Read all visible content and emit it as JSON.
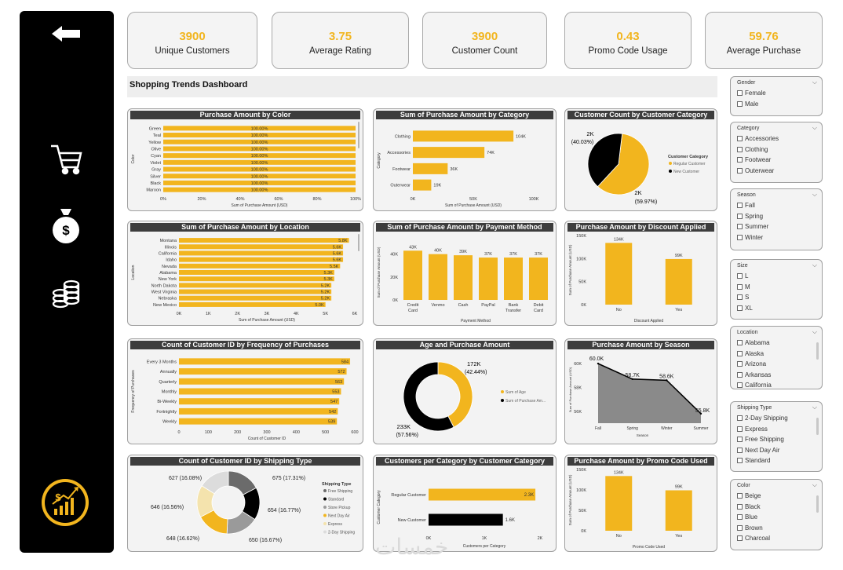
{
  "kpis": [
    {
      "value": "3900",
      "label": "Unique Customers"
    },
    {
      "value": "3.75",
      "label": "Average Rating"
    },
    {
      "value": "3900",
      "label": "Customer Count"
    },
    {
      "value": "0.43",
      "label": "Promo Code Usage"
    },
    {
      "value": "59.76",
      "label": "Average Purchase"
    }
  ],
  "dashboard_title": "Shopping Trends Dashboard",
  "sidebar_icons": [
    "back-arrow-icon",
    "shopping-cart-icon",
    "money-bag-icon",
    "coin-stack-icon",
    "growth-chart-icon"
  ],
  "colors": {
    "accent": "#f2b51e",
    "dark": "#000000",
    "gray": "#8a8a8a",
    "header": "#3d3d3d"
  },
  "watermark": "خمسات",
  "slicers": [
    {
      "title": "Gender",
      "items": [
        "Female",
        "Male"
      ]
    },
    {
      "title": "Category",
      "items": [
        "Accessories",
        "Clothing",
        "Footwear",
        "Outerwear"
      ]
    },
    {
      "title": "Season",
      "items": [
        "Fall",
        "Spring",
        "Summer",
        "Winter"
      ]
    },
    {
      "title": "Size",
      "items": [
        "L",
        "M",
        "S",
        "XL"
      ]
    },
    {
      "title": "Location",
      "items": [
        "Alabama",
        "Alaska",
        "Arizona",
        "Arkansas",
        "California"
      ]
    },
    {
      "title": "Shipping Type",
      "items": [
        "2-Day Shipping",
        "Express",
        "Free Shipping",
        "Next Day Air",
        "Standard"
      ]
    },
    {
      "title": "Color",
      "items": [
        "Beige",
        "Black",
        "Blue",
        "Brown",
        "Charcoal"
      ]
    }
  ],
  "chart_data": [
    {
      "type": "bar",
      "orientation": "horizontal",
      "stacked100": true,
      "title": "Purchase Amount by Color",
      "categories": [
        "Green",
        "Teal",
        "Yellow",
        "Olive",
        "Cyan",
        "Violet",
        "Gray",
        "Silver",
        "Black",
        "Maroon"
      ],
      "values": [
        100,
        100,
        100,
        100,
        100,
        100,
        100,
        100,
        100,
        100
      ],
      "labels": [
        "100.00%",
        "100.00%",
        "100.00%",
        "100.00%",
        "100.00%",
        "100.00%",
        "100.00%",
        "100.00%",
        "100.00%",
        "100.00%"
      ],
      "xticks": [
        "0%",
        "20%",
        "40%",
        "60%",
        "80%",
        "100%"
      ],
      "xlim": [
        0,
        100
      ],
      "xlabel": "Sum of Purchase Amount (USD)",
      "ylabel": "Color"
    },
    {
      "type": "bar",
      "orientation": "horizontal",
      "title": "Sum of Purchase Amount by Category",
      "categories": [
        "Clothing",
        "Accessories",
        "Footwear",
        "Outerwear"
      ],
      "values": [
        104,
        74,
        36,
        19
      ],
      "labels": [
        "104K",
        "74K",
        "36K",
        "19K"
      ],
      "xticks": [
        "0K",
        "50K",
        "100K"
      ],
      "xlim": [
        0,
        125
      ],
      "xlabel": "Sum of Purchase Amount (USD)",
      "ylabel": "Category"
    },
    {
      "type": "pie",
      "title": "Customer Count by Customer Category",
      "legend_title": "Customer Category",
      "slices": [
        {
          "name": "Regular Customer",
          "value": 59.97,
          "label": "2K",
          "pct": "(59.97%)",
          "color": "#f2b51e"
        },
        {
          "name": "New Customer",
          "value": 40.03,
          "label": "2K",
          "pct": "(40.03%)",
          "color": "#000000"
        }
      ]
    },
    {
      "type": "bar",
      "orientation": "horizontal",
      "title": "Sum of Purchase Amount by Location",
      "categories": [
        "Montana",
        "Illinois",
        "California",
        "Idaho",
        "Nevada",
        "Alabama",
        "New York",
        "North Dakota",
        "West Virginia",
        "Nebraska",
        "New Mexico"
      ],
      "values": [
        5.8,
        5.6,
        5.6,
        5.6,
        5.5,
        5.3,
        5.3,
        5.2,
        5.2,
        5.2,
        5.0
      ],
      "labels": [
        "5.8K",
        "5.6K",
        "5.6K",
        "5.6K",
        "5.5K",
        "5.3K",
        "5.3K",
        "5.2K",
        "5.2K",
        "5.2K",
        "5.0K"
      ],
      "xticks": [
        "0K",
        "1K",
        "2K",
        "3K",
        "4K",
        "5K",
        "6K"
      ],
      "xlim": [
        0,
        6
      ],
      "xlabel": "Sum of Purchase Amount (USD)",
      "ylabel": "Location"
    },
    {
      "type": "bar",
      "orientation": "vertical",
      "title": "Sum of Purchase Amount by Payment Method",
      "categories": [
        [
          "Credit",
          "Card"
        ],
        [
          "Venmo"
        ],
        [
          "Cash"
        ],
        [
          "PayPal"
        ],
        [
          "Bank",
          "Transfer"
        ],
        [
          "Debit",
          "Card"
        ]
      ],
      "values": [
        43,
        40,
        39,
        37,
        37,
        37
      ],
      "labels": [
        "43K",
        "40K",
        "39K",
        "37K",
        "37K",
        "37K"
      ],
      "yticks": [
        "0K",
        "20K",
        "40K"
      ],
      "ylim": [
        0,
        48
      ],
      "xlabel": "Payment Method",
      "ylabel": "Sum of Purchase Amount (USD)"
    },
    {
      "type": "bar",
      "orientation": "vertical",
      "title": "Purchase Amount by Discount Applied",
      "categories": [
        [
          "No"
        ],
        [
          "Yes"
        ]
      ],
      "values": [
        134,
        99
      ],
      "labels": [
        "134K",
        "99K"
      ],
      "yticks": [
        "0K",
        "50K",
        "100K",
        "150K"
      ],
      "ylim": [
        0,
        150
      ],
      "xlabel": "Discount Applied",
      "ylabel": "Sum of Purchase Amount (USD)"
    },
    {
      "type": "bar",
      "orientation": "horizontal",
      "title": "Count of Customer ID by Frequency of Purchases",
      "categories": [
        "Every 3 Months",
        "Annually",
        "Quarterly",
        "Monthly",
        "Bi-Weekly",
        "Fortnightly",
        "Weekly"
      ],
      "values": [
        584,
        572,
        563,
        553,
        547,
        542,
        539
      ],
      "labels": [
        "584",
        "572",
        "563",
        "553",
        "547",
        "542",
        "539"
      ],
      "xticks": [
        "0",
        "100",
        "200",
        "300",
        "400",
        "500",
        "600"
      ],
      "xlim": [
        0,
        600
      ],
      "xlabel": "Count of Customer ID",
      "ylabel": "Frequency of Purchases"
    },
    {
      "type": "pie",
      "donut": true,
      "title": "Age and Purchase Amount",
      "slices": [
        {
          "name": "Sum of Age",
          "value": 42.44,
          "label": "172K",
          "pct": "(42.44%)",
          "color": "#f2b51e"
        },
        {
          "name": "Sum of Purchase Am...",
          "value": 57.56,
          "label": "233K",
          "pct": "(57.56%)",
          "color": "#000000"
        }
      ]
    },
    {
      "type": "area",
      "title": "Purchase Amount by Season",
      "categories": [
        "Fall",
        "Spring",
        "Winter",
        "Summer"
      ],
      "values": [
        60.0,
        58.7,
        58.6,
        55.8
      ],
      "labels": [
        "60.0K",
        "58.7K",
        "58.6K",
        "55.8K"
      ],
      "yticks": [
        "56K",
        "58K",
        "60K"
      ],
      "ylim": [
        55,
        60.6
      ],
      "xlabel": "Season",
      "ylabel": "Sum of Purchase Amount (USD)"
    },
    {
      "type": "pie",
      "donut": true,
      "title": "Count of Customer ID by Shipping Type",
      "legend_title": "Shipping Type",
      "slices": [
        {
          "name": "Free Shipping",
          "value": 675,
          "label": "675",
          "pct": "(17.31%)",
          "color": "#6b6b6b"
        },
        {
          "name": "Standard",
          "value": 654,
          "label": "654",
          "pct": "(16.77%)",
          "color": "#000000"
        },
        {
          "name": "Store Pickup",
          "value": 650,
          "label": "650",
          "pct": "(16.67%)",
          "color": "#9a9a9a"
        },
        {
          "name": "Next Day Air",
          "value": 648,
          "label": "648",
          "pct": "(16.62%)",
          "color": "#f2b51e"
        },
        {
          "name": "Express",
          "value": 646,
          "label": "646",
          "pct": "(16.56%)",
          "color": "#f4e3ad"
        },
        {
          "name": "2-Day Shipping",
          "value": 627,
          "label": "627",
          "pct": "(16.08%)",
          "color": "#dcdcdc"
        }
      ]
    },
    {
      "type": "bar",
      "orientation": "horizontal",
      "title": "Customers per Category by Customer Category",
      "categories": [
        "Regular Customer",
        "New Customer"
      ],
      "values": [
        2.3,
        1.6
      ],
      "labels": [
        "2.3K",
        "1.6K"
      ],
      "colors": [
        "#f2b51e",
        "#000000"
      ],
      "xticks": [
        "0K",
        "1K",
        "2K"
      ],
      "xlim": [
        0,
        2.4
      ],
      "xlabel": "Customers per Category",
      "ylabel": "Customer Category"
    },
    {
      "type": "bar",
      "orientation": "vertical",
      "title": "Purchase Amount by Promo Code Used",
      "categories": [
        [
          "No"
        ],
        [
          "Yes"
        ]
      ],
      "values": [
        134,
        99
      ],
      "labels": [
        "134K",
        "99K"
      ],
      "yticks": [
        "0K",
        "50K",
        "100K",
        "150K"
      ],
      "ylim": [
        0,
        150
      ],
      "xlabel": "Promo Code Used",
      "ylabel": "Sum of Purchase Amount (USD)"
    }
  ]
}
